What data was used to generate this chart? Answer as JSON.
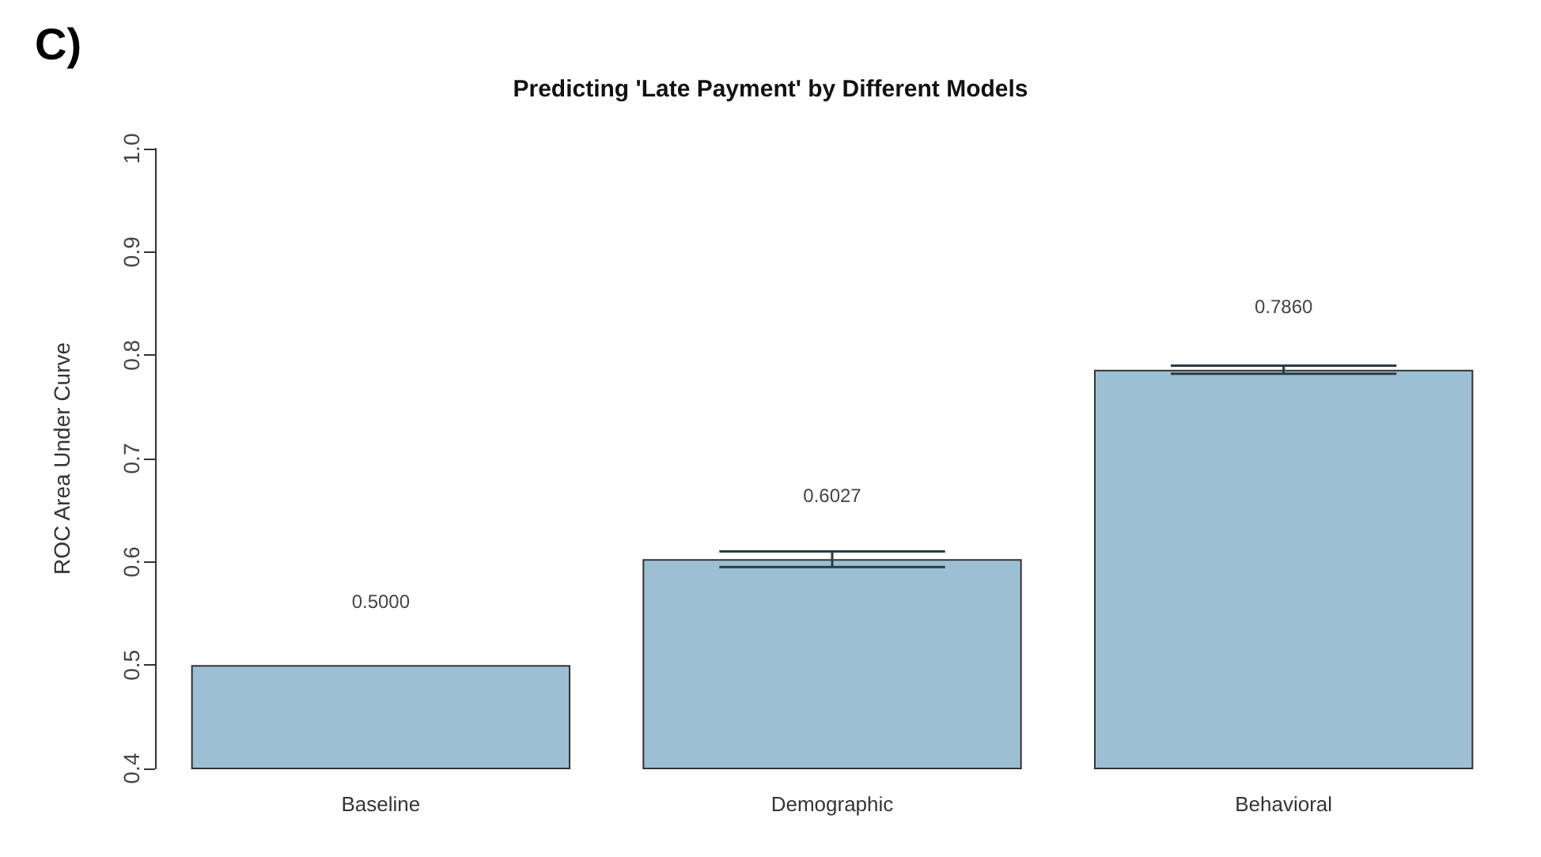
{
  "chart_data": {
    "type": "bar",
    "title": "Predicting 'Late Payment' by Different Models",
    "ylabel": "ROC Area Under Curve",
    "categories": [
      "Baseline",
      "Demographic",
      "Behavioral"
    ],
    "values": [
      0.5,
      0.6027,
      0.786
    ],
    "value_labels": [
      "0.5000",
      "0.6027",
      "0.7860"
    ],
    "errors": [
      null,
      [
        0.595,
        0.61
      ],
      [
        0.782,
        0.79
      ]
    ],
    "color": "#9dbfd4",
    "ylim": [
      0.4,
      1.0
    ],
    "yticks": [
      0.4,
      0.5,
      0.6,
      0.7,
      0.8,
      0.9,
      {
        "value": 1,
        "label": "1.0"
      }
    ],
    "grid": false,
    "annotations": [
      "C)"
    ]
  }
}
